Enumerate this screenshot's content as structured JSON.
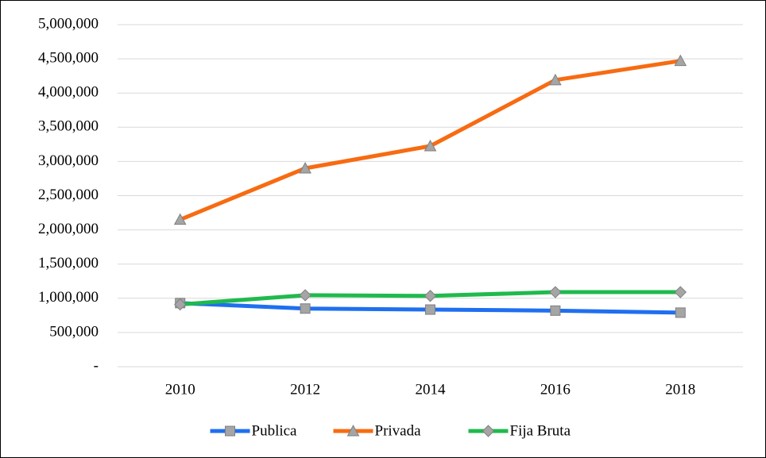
{
  "chart_data": {
    "type": "line",
    "categories": [
      "2010",
      "2012",
      "2014",
      "2016",
      "2018"
    ],
    "series": [
      {
        "name": "Publica",
        "color": "#1f6ff0",
        "marker": "square",
        "values": [
          930000,
          850000,
          835000,
          820000,
          790000
        ]
      },
      {
        "name": "Privada",
        "color": "#f76b12",
        "marker": "triangle",
        "values": [
          2150000,
          2900000,
          3225000,
          4190000,
          4470000
        ]
      },
      {
        "name": "Fija Bruta",
        "color": "#1fba4d",
        "marker": "diamond",
        "values": [
          910000,
          1045000,
          1035000,
          1090000,
          1090000
        ]
      }
    ],
    "ylim": [
      0,
      5000000
    ],
    "yticks": [
      {
        "value": 0,
        "label": "-"
      },
      {
        "value": 500000,
        "label": "500,000"
      },
      {
        "value": 1000000,
        "label": "1,000,000"
      },
      {
        "value": 1500000,
        "label": "1,500,000"
      },
      {
        "value": 2000000,
        "label": "2,000,000"
      },
      {
        "value": 2500000,
        "label": "2,500,000"
      },
      {
        "value": 3000000,
        "label": "3,000,000"
      },
      {
        "value": 3500000,
        "label": "3,500,000"
      },
      {
        "value": 4000000,
        "label": "4,000,000"
      },
      {
        "value": 4500000,
        "label": "4,500,000"
      },
      {
        "value": 5000000,
        "label": "5,000,000"
      }
    ],
    "grid": true,
    "legend": "bottom"
  }
}
